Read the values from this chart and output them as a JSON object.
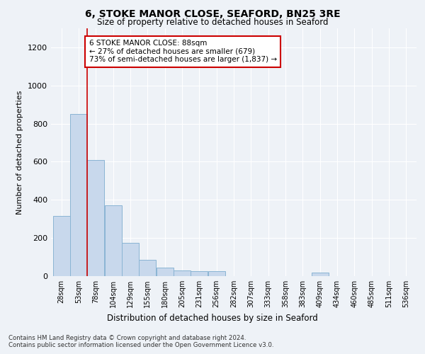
{
  "title": "6, STOKE MANOR CLOSE, SEAFORD, BN25 3RE",
  "subtitle": "Size of property relative to detached houses in Seaford",
  "xlabel": "Distribution of detached houses by size in Seaford",
  "ylabel": "Number of detached properties",
  "categories": [
    "28sqm",
    "53sqm",
    "78sqm",
    "104sqm",
    "129sqm",
    "155sqm",
    "180sqm",
    "205sqm",
    "231sqm",
    "256sqm",
    "282sqm",
    "307sqm",
    "333sqm",
    "358sqm",
    "383sqm",
    "409sqm",
    "434sqm",
    "460sqm",
    "485sqm",
    "511sqm",
    "536sqm"
  ],
  "values": [
    315,
    850,
    610,
    370,
    175,
    85,
    45,
    30,
    25,
    25,
    0,
    0,
    0,
    0,
    0,
    20,
    0,
    0,
    0,
    0,
    0
  ],
  "bar_color": "#c8d8ec",
  "bar_edge_color": "#8ab4d4",
  "bar_linewidth": 0.7,
  "ylim": [
    0,
    1300
  ],
  "yticks": [
    0,
    200,
    400,
    600,
    800,
    1000,
    1200
  ],
  "annotation_text": "6 STOKE MANOR CLOSE: 88sqm\n← 27% of detached houses are smaller (679)\n73% of semi-detached houses are larger (1,837) →",
  "annotation_box_color": "#ffffff",
  "annotation_box_edge_color": "#cc0000",
  "red_line_x": 1.5,
  "red_line_color": "#cc0000",
  "footer_line1": "Contains HM Land Registry data © Crown copyright and database right 2024.",
  "footer_line2": "Contains public sector information licensed under the Open Government Licence v3.0.",
  "background_color": "#eef2f7",
  "plot_bg_color": "#eef2f7",
  "grid_color": "#ffffff"
}
